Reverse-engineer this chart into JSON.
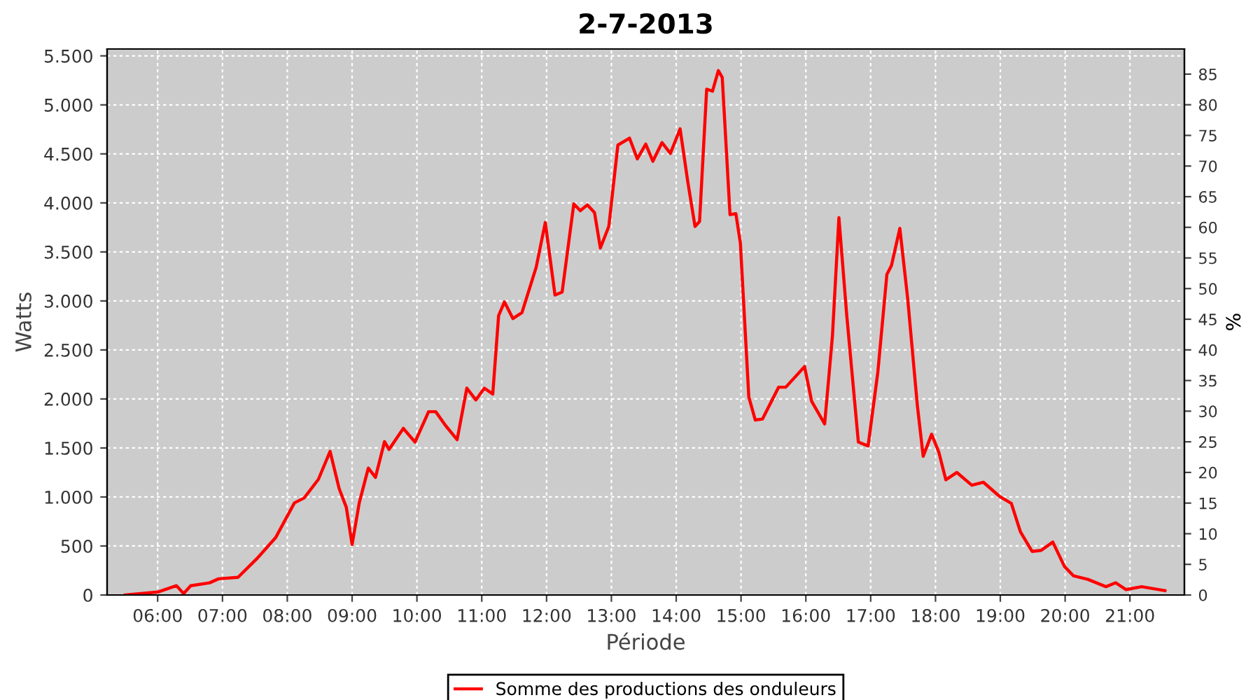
{
  "chart_data": {
    "type": "line",
    "title": "2-7-2013",
    "xlabel": "Période",
    "ylabel": "Watts",
    "y2label": "%",
    "xlim": [
      5.22,
      21.84
    ],
    "ylim": [
      0,
      5570
    ],
    "y2lim": [
      0,
      89.1
    ],
    "xticks": [
      {
        "value": 6,
        "label": "06:00"
      },
      {
        "value": 7,
        "label": "07:00"
      },
      {
        "value": 8,
        "label": "08:00"
      },
      {
        "value": 9,
        "label": "09:00"
      },
      {
        "value": 10,
        "label": "10:00"
      },
      {
        "value": 11,
        "label": "11:00"
      },
      {
        "value": 12,
        "label": "12:00"
      },
      {
        "value": 13,
        "label": "13:00"
      },
      {
        "value": 14,
        "label": "14:00"
      },
      {
        "value": 15,
        "label": "15:00"
      },
      {
        "value": 16,
        "label": "16:00"
      },
      {
        "value": 17,
        "label": "17:00"
      },
      {
        "value": 18,
        "label": "18:00"
      },
      {
        "value": 19,
        "label": "19:00"
      },
      {
        "value": 20,
        "label": "20:00"
      },
      {
        "value": 21,
        "label": "21:00"
      }
    ],
    "yticks": [
      0,
      {
        "value": 500,
        "label": "500"
      },
      {
        "value": 1000,
        "label": "1.000"
      },
      {
        "value": 1500,
        "label": "1.500"
      },
      {
        "value": 2000,
        "label": "2.000"
      },
      {
        "value": 2500,
        "label": "2.500"
      },
      {
        "value": 3000,
        "label": "3.000"
      },
      {
        "value": 3500,
        "label": "3.500"
      },
      {
        "value": 4000,
        "label": "4.000"
      },
      {
        "value": 4500,
        "label": "4.500"
      },
      {
        "value": 5000,
        "label": "5.000"
      },
      {
        "value": 5500,
        "label": "5.500"
      }
    ],
    "y2ticks": [
      0,
      5,
      10,
      15,
      20,
      25,
      30,
      35,
      40,
      45,
      50,
      55,
      60,
      65,
      70,
      75,
      80,
      85
    ],
    "grid": true,
    "legend": "bottom",
    "marker": "none",
    "line_style": "solid",
    "series": [
      {
        "name": "Somme des productions des onduleurs",
        "color": "#ff0000",
        "x": [
          5.5,
          6.0,
          6.29,
          6.4,
          6.51,
          6.8,
          6.94,
          7.24,
          7.53,
          7.82,
          8.11,
          8.26,
          8.48,
          8.66,
          8.8,
          8.91,
          9.0,
          9.11,
          9.25,
          9.36,
          9.5,
          9.57,
          9.79,
          9.97,
          10.18,
          10.29,
          10.44,
          10.62,
          10.77,
          10.91,
          11.04,
          11.17,
          11.26,
          11.35,
          11.48,
          11.62,
          11.84,
          11.98,
          12.13,
          12.24,
          12.42,
          12.52,
          12.63,
          12.74,
          12.83,
          12.96,
          13.1,
          13.28,
          13.4,
          13.53,
          13.64,
          13.78,
          13.91,
          14.06,
          14.18,
          14.29,
          14.36,
          14.47,
          14.56,
          14.65,
          14.71,
          14.83,
          14.92,
          14.99,
          15.12,
          15.22,
          15.33,
          15.58,
          15.69,
          15.98,
          16.09,
          16.29,
          16.41,
          16.51,
          16.63,
          16.81,
          16.96,
          17.11,
          17.25,
          17.32,
          17.45,
          17.57,
          17.72,
          17.81,
          17.94,
          18.05,
          18.16,
          18.33,
          18.56,
          18.74,
          18.99,
          19.17,
          19.31,
          19.49,
          19.63,
          19.81,
          19.99,
          20.13,
          20.35,
          20.63,
          20.78,
          20.94,
          21.18,
          21.54
        ],
        "values": [
          0,
          30,
          95,
          15,
          95,
          124,
          165,
          180,
          370,
          585,
          940,
          990,
          1180,
          1465,
          1085,
          895,
          515,
          940,
          1295,
          1200,
          1565,
          1485,
          1700,
          1560,
          1870,
          1870,
          1730,
          1585,
          2110,
          1990,
          2110,
          2050,
          2850,
          2990,
          2820,
          2880,
          3345,
          3800,
          3060,
          3090,
          3990,
          3920,
          3980,
          3900,
          3540,
          3760,
          4590,
          4660,
          4450,
          4600,
          4425,
          4615,
          4505,
          4755,
          4210,
          3760,
          3810,
          5160,
          5140,
          5350,
          5280,
          3880,
          3890,
          3590,
          2020,
          1785,
          1795,
          2120,
          2120,
          2330,
          1975,
          1745,
          2640,
          3850,
          2860,
          1560,
          1520,
          2270,
          3270,
          3360,
          3740,
          3030,
          1935,
          1415,
          1640,
          1460,
          1175,
          1250,
          1120,
          1150,
          1005,
          935,
          645,
          445,
          455,
          540,
          290,
          195,
          160,
          85,
          125,
          55,
          85,
          45
        ]
      }
    ]
  }
}
